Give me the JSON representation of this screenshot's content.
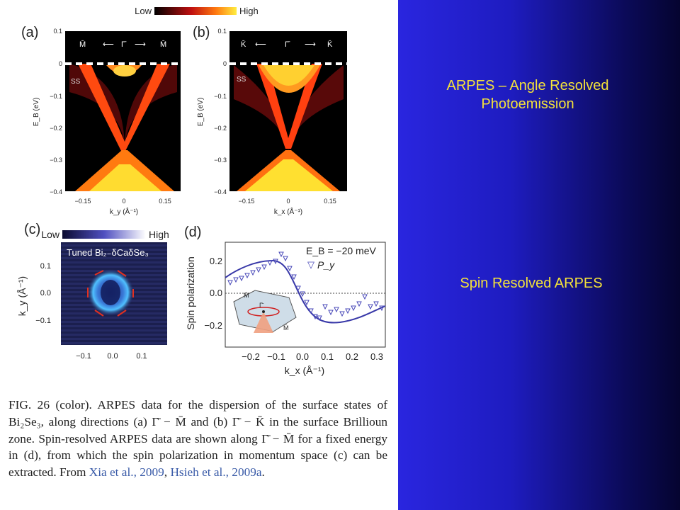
{
  "slide": {
    "title_line1": "ARPES – Angle Resolved",
    "title_line2": "Photoemission",
    "subtitle": "Spin Resolved ARPES"
  },
  "figure": {
    "colorbar_top": {
      "low": "Low",
      "high": "High"
    },
    "colorbar_c": {
      "low": "Low",
      "high": "High"
    },
    "panel_a": {
      "label": "(a)",
      "dir_left": "M̄",
      "dir_center": "Γ̄",
      "dir_right": "M̄",
      "ss": "SS",
      "ylabel": "E_B (eV)",
      "yticks": [
        "0.1",
        "0",
        "−0.1",
        "−0.2",
        "−0.3",
        "−0.4"
      ],
      "xticks": [
        "−0.15",
        "0",
        "0.15"
      ],
      "xlabel": "k_y (Å⁻¹)"
    },
    "panel_b": {
      "label": "(b)",
      "dir_left": "K̄",
      "dir_center": "Γ̄",
      "dir_right": "K̄",
      "ss": "SS",
      "ylabel": "E_B (eV)",
      "yticks": [
        "0.1",
        "0",
        "−0.1",
        "−0.2",
        "−0.3",
        "−0.4"
      ],
      "xticks": [
        "−0.15",
        "0",
        "0.15"
      ],
      "xlabel": "k_x (Å⁻¹)"
    },
    "panel_c": {
      "label": "(c)",
      "inset_title": "Tuned Bi₂₋δCaδSe₃",
      "ylabel": "k_y (Å⁻¹)",
      "yticks": [
        "0.1",
        "0.0",
        "−0.1"
      ],
      "xticks": [
        "−0.1",
        "0.0",
        "0.1"
      ]
    },
    "panel_d": {
      "label": "(d)",
      "energy": "E_B = −20 meV",
      "legend": "P_y",
      "ylabel": "Spin polarization",
      "yticks": [
        "0.2",
        "0.0",
        "−0.2"
      ],
      "xticks": [
        "−0.2",
        "−0.1",
        "0.0",
        "0.1",
        "0.2",
        "0.3"
      ],
      "xlabel": "k_x (Å⁻¹)",
      "inset_labels": [
        "M̄",
        "Γ̄",
        "M̄"
      ]
    },
    "caption": {
      "part1": "FIG. 26 (color).   ARPES data for the dispersion of the surface states of Bi₂Se₃, along directions (a) Γ̄ − M̄ and (b) Γ̄ − K̄ in the surface Brillioun zone. Spin-resolved ARPES data are shown along Γ̄ − M̄ for a fixed energy in (d), from which the spin polarization in momentum space (c) can be extracted. From ",
      "ref1": "Xia  et al., 2009",
      "sep": ", ",
      "ref2": "Hsieh et al., 2009a",
      "end": "."
    }
  }
}
